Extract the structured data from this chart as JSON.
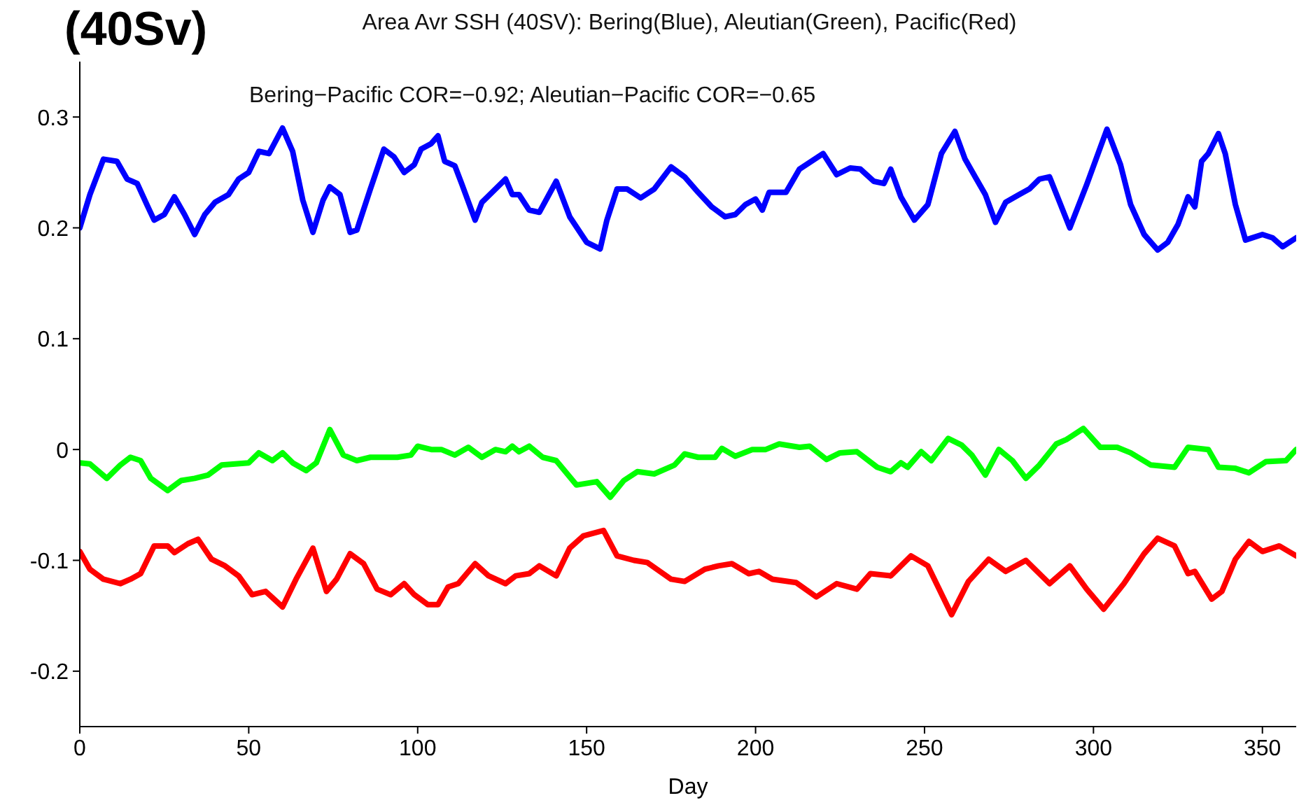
{
  "chart_data": {
    "type": "line",
    "title": "Area Avr SSH (40SV): Bering(Blue), Aleutian(Green), Pacific(Red)",
    "xlabel": "Day",
    "annotations": [
      "(40Sv)",
      "Bering−Pacific COR=−0.92;  Aleutian−Pacific COR=−0.65"
    ],
    "xlim": [
      0,
      360
    ],
    "ylim": [
      -0.25,
      0.35
    ],
    "xticks": [
      0,
      50,
      100,
      150,
      200,
      250,
      300,
      350
    ],
    "yticks": [
      -0.2,
      -0.1,
      0,
      0.1,
      0.2,
      0.3
    ],
    "grid": false,
    "marker": "none",
    "line_style": "solid",
    "series": [
      {
        "color": "#0000ff",
        "x": [
          0,
          3,
          7,
          11,
          14,
          17,
          20,
          22,
          25,
          28,
          31,
          34,
          37,
          40,
          44,
          47,
          50,
          53,
          56,
          60,
          63,
          66,
          69,
          72,
          74,
          77,
          80,
          82,
          86,
          90,
          93,
          96,
          99,
          101,
          104,
          106,
          108,
          111,
          113,
          117,
          119,
          123,
          126,
          128,
          130,
          133,
          136,
          141,
          145,
          150,
          154,
          156,
          159,
          162,
          166,
          170,
          175,
          179,
          183,
          187,
          191,
          194,
          197,
          200,
          202,
          204,
          209,
          213,
          220,
          224,
          228,
          231,
          235,
          238,
          240,
          243,
          247,
          251,
          255,
          259,
          262,
          265,
          268,
          271,
          274,
          278,
          281,
          284,
          287,
          290,
          293,
          298,
          304,
          308,
          311,
          315,
          319,
          322,
          325,
          328,
          330,
          332,
          334,
          337,
          339,
          342,
          345,
          350,
          353,
          356,
          360
        ],
        "values": [
          0.2,
          0.23,
          0.262,
          0.26,
          0.244,
          0.24,
          0.22,
          0.207,
          0.212,
          0.228,
          0.212,
          0.194,
          0.212,
          0.223,
          0.23,
          0.244,
          0.25,
          0.269,
          0.267,
          0.29,
          0.269,
          0.225,
          0.196,
          0.225,
          0.237,
          0.23,
          0.196,
          0.198,
          0.235,
          0.271,
          0.264,
          0.25,
          0.257,
          0.271,
          0.276,
          0.283,
          0.26,
          0.256,
          0.24,
          0.207,
          0.223,
          0.235,
          0.244,
          0.23,
          0.23,
          0.216,
          0.214,
          0.242,
          0.21,
          0.187,
          0.181,
          0.207,
          0.235,
          0.235,
          0.227,
          0.235,
          0.255,
          0.246,
          0.232,
          0.219,
          0.21,
          0.212,
          0.221,
          0.226,
          0.216,
          0.232,
          0.232,
          0.253,
          0.267,
          0.248,
          0.254,
          0.253,
          0.242,
          0.24,
          0.253,
          0.228,
          0.207,
          0.221,
          0.267,
          0.287,
          0.262,
          0.246,
          0.23,
          0.205,
          0.223,
          0.23,
          0.235,
          0.244,
          0.246,
          0.223,
          0.2,
          0.239,
          0.289,
          0.257,
          0.221,
          0.194,
          0.18,
          0.187,
          0.203,
          0.228,
          0.219,
          0.26,
          0.267,
          0.285,
          0.267,
          0.221,
          0.189,
          0.194,
          0.191,
          0.183,
          0.191
        ]
      },
      {
        "color": "#00ff00",
        "x": [
          0,
          3,
          8,
          12,
          15,
          18,
          21,
          26,
          30,
          34,
          38,
          42,
          46,
          50,
          53,
          57,
          60,
          63,
          67,
          70,
          74,
          78,
          82,
          86,
          90,
          94,
          98,
          100,
          104,
          107,
          111,
          115,
          119,
          123,
          126,
          128,
          130,
          133,
          137,
          141,
          147,
          153,
          157,
          161,
          165,
          170,
          176,
          179,
          183,
          188,
          190,
          194,
          199,
          203,
          207,
          213,
          216,
          221,
          225,
          230,
          236,
          240,
          243,
          245,
          249,
          252,
          257,
          261,
          264,
          268,
          272,
          276,
          280,
          284,
          289,
          292,
          297,
          302,
          307,
          311,
          317,
          324,
          328,
          334,
          337,
          342,
          346,
          351,
          357,
          360
        ],
        "values": [
          -0.012,
          -0.013,
          -0.026,
          -0.014,
          -0.007,
          -0.01,
          -0.026,
          -0.037,
          -0.028,
          -0.026,
          -0.023,
          -0.014,
          -0.013,
          -0.012,
          -0.003,
          -0.01,
          -0.003,
          -0.012,
          -0.019,
          -0.012,
          0.018,
          -0.005,
          -0.01,
          -0.007,
          -0.007,
          -0.007,
          -0.005,
          0.003,
          0,
          0,
          -0.005,
          0.002,
          -0.007,
          0,
          -0.002,
          0.003,
          -0.002,
          0.003,
          -0.007,
          -0.01,
          -0.032,
          -0.029,
          -0.043,
          -0.028,
          -0.02,
          -0.022,
          -0.014,
          -0.004,
          -0.007,
          -0.007,
          0.001,
          -0.006,
          0,
          0,
          0.005,
          0.002,
          0.003,
          -0.009,
          -0.003,
          -0.002,
          -0.016,
          -0.02,
          -0.012,
          -0.016,
          -0.002,
          -0.01,
          0.01,
          0.004,
          -0.005,
          -0.023,
          0,
          -0.01,
          -0.026,
          -0.014,
          0.005,
          0.009,
          0.019,
          0.002,
          0.002,
          -0.003,
          -0.014,
          -0.016,
          0.002,
          0,
          -0.016,
          -0.017,
          -0.021,
          -0.011,
          -0.01,
          0
        ]
      },
      {
        "color": "#ff0000",
        "x": [
          0,
          3,
          7,
          12,
          15,
          18,
          22,
          26,
          28,
          32,
          35,
          39,
          43,
          47,
          51,
          55,
          60,
          64,
          69,
          73,
          76,
          80,
          84,
          88,
          92,
          96,
          99,
          103,
          106,
          109,
          112,
          117,
          121,
          126,
          129,
          133,
          136,
          141,
          145,
          149,
          155,
          159,
          164,
          168,
          175,
          179,
          185,
          189,
          193,
          198,
          201,
          205,
          212,
          218,
          224,
          230,
          234,
          240,
          246,
          251,
          258,
          263,
          269,
          274,
          280,
          287,
          293,
          298,
          303,
          309,
          315,
          319,
          324,
          328,
          330,
          335,
          338,
          342,
          346,
          350,
          355,
          360
        ],
        "values": [
          -0.092,
          -0.108,
          -0.117,
          -0.121,
          -0.117,
          -0.112,
          -0.087,
          -0.087,
          -0.093,
          -0.085,
          -0.081,
          -0.099,
          -0.105,
          -0.114,
          -0.131,
          -0.128,
          -0.142,
          -0.117,
          -0.089,
          -0.128,
          -0.117,
          -0.094,
          -0.103,
          -0.126,
          -0.131,
          -0.121,
          -0.131,
          -0.14,
          -0.14,
          -0.124,
          -0.121,
          -0.103,
          -0.114,
          -0.121,
          -0.114,
          -0.112,
          -0.105,
          -0.114,
          -0.089,
          -0.078,
          -0.073,
          -0.096,
          -0.1,
          -0.102,
          -0.117,
          -0.119,
          -0.108,
          -0.105,
          -0.103,
          -0.112,
          -0.11,
          -0.117,
          -0.12,
          -0.133,
          -0.121,
          -0.126,
          -0.112,
          -0.114,
          -0.096,
          -0.105,
          -0.149,
          -0.119,
          -0.099,
          -0.11,
          -0.1,
          -0.121,
          -0.105,
          -0.126,
          -0.144,
          -0.121,
          -0.094,
          -0.08,
          -0.087,
          -0.112,
          -0.11,
          -0.135,
          -0.128,
          -0.099,
          -0.083,
          -0.092,
          -0.087,
          -0.096
        ]
      }
    ]
  }
}
